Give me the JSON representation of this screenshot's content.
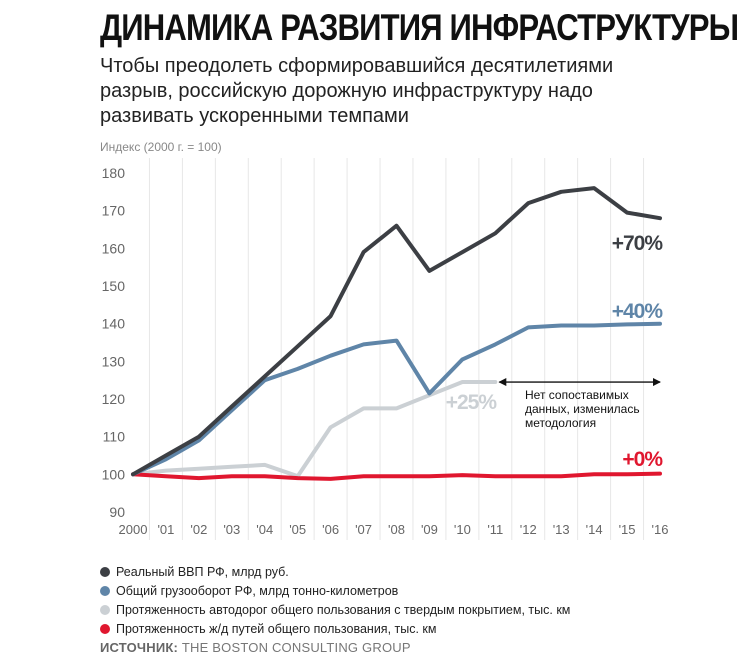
{
  "title": "ДИНАМИКА РАЗВИТИЯ ИНФРАСТРУКТУРЫ",
  "subtitle": "Чтобы преодолеть сформировавшийся десятилетиями разрыв, российскую дорожную инфраструктуру надо развивать ускоренными темпами",
  "source_label": "ИСТОЧНИК:",
  "source_text": "THE BOSTON CONSULTING GROUP",
  "chart_data": {
    "type": "line",
    "ylabel": "Индекс (2000 г. = 100)",
    "ylim": [
      90,
      180
    ],
    "yticks": [
      90,
      100,
      110,
      120,
      130,
      140,
      150,
      160,
      170,
      180
    ],
    "categories": [
      "2000",
      "'01",
      "'02",
      "'03",
      "'04",
      "'05",
      "'06",
      "'07",
      "'08",
      "'09",
      "'10",
      "'11",
      "'12",
      "'13",
      "'14",
      "'15",
      "'16"
    ],
    "grid": "vertical",
    "legend_position": "bottom",
    "series": [
      {
        "name": "Реальный ВВП РФ, млрд руб.",
        "color": "#3c3f44",
        "end_label": "+70%",
        "values": [
          100,
          105,
          110,
          118,
          126,
          134,
          142,
          159,
          166,
          154,
          159,
          164,
          172,
          175,
          176,
          169.5,
          168
        ]
      },
      {
        "name": "Общий грузооборот РФ, млрд тонно-километров",
        "color": "#5f85a8",
        "end_label": "+40%",
        "values": [
          100,
          104,
          109,
          117,
          125,
          128,
          131.5,
          134.5,
          135.5,
          121.5,
          130.5,
          134.5,
          139,
          139.5,
          139.5,
          139.8,
          140
        ]
      },
      {
        "name": "Протяженность автодорог общего пользования с твердым покрытием, тыс. км",
        "color": "#cbd0d4",
        "end_label": "+25%",
        "values": [
          100,
          101,
          101.5,
          102,
          102.5,
          99.5,
          112.5,
          117.5,
          117.5,
          121,
          124.5,
          124.5,
          null,
          null,
          null,
          null,
          null
        ]
      },
      {
        "name": "Протяженность ж/д путей общего пользования, тыс. км",
        "color": "#e0172f",
        "end_label": "+0%",
        "values": [
          100,
          99.5,
          99,
          99.5,
          99.5,
          99,
          98.8,
          99.5,
          99.5,
          99.5,
          99.8,
          99.5,
          99.5,
          99.5,
          100,
          100,
          100.2
        ]
      }
    ],
    "annotation": {
      "text": "Нет сопоставимых данных, изменилась методология",
      "from": "'11",
      "to": "'16",
      "y": 124.5
    }
  }
}
